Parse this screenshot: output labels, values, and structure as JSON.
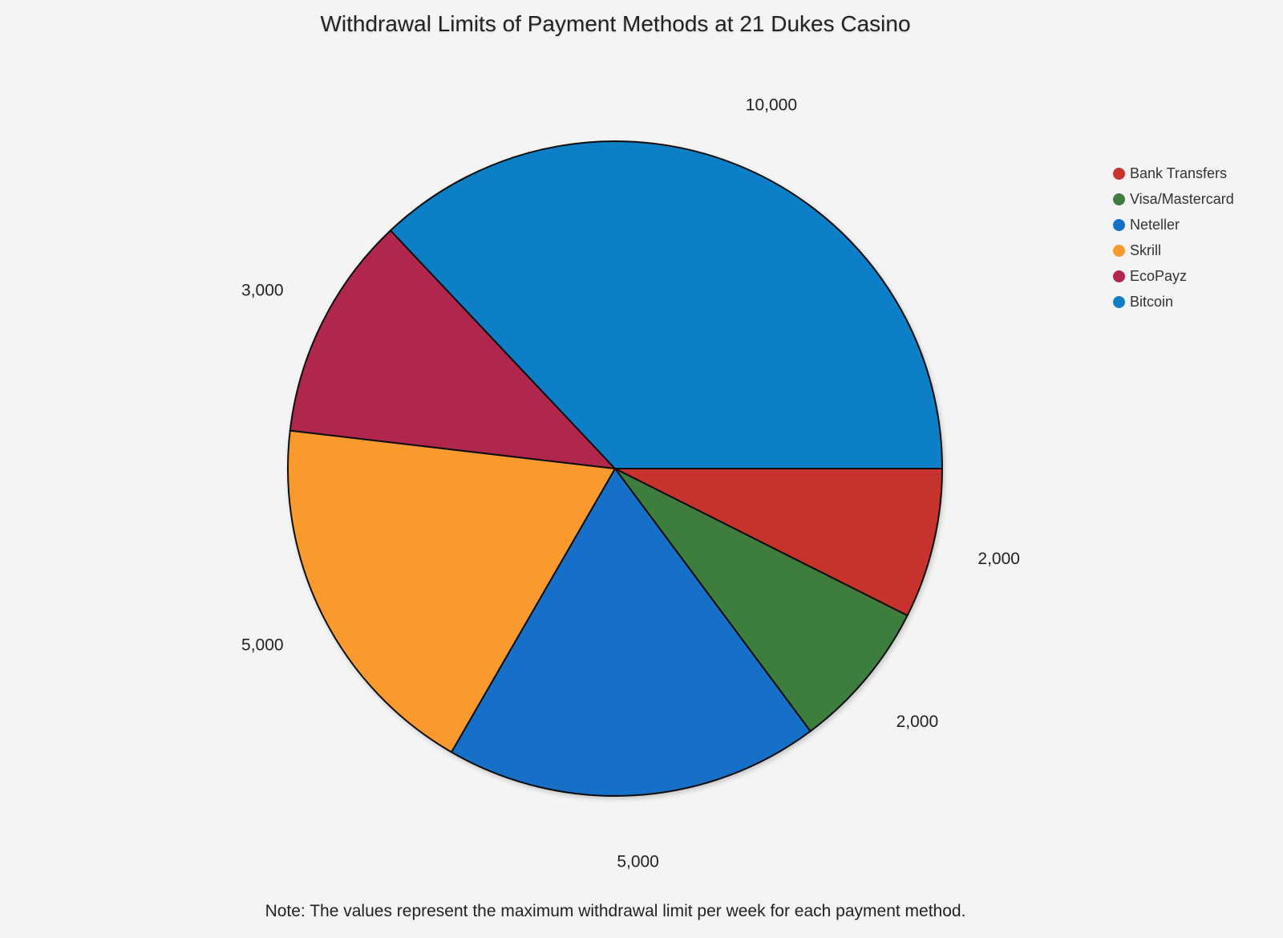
{
  "chart_data": {
    "type": "pie",
    "title": "Withdrawal Limits of Payment Methods at 21 Dukes Casino",
    "categories": [
      "Bank Transfers",
      "Visa/Mastercard",
      "Neteller",
      "Skrill",
      "EcoPayz",
      "Bitcoin"
    ],
    "values": [
      2000,
      2000,
      5000,
      5000,
      3000,
      10000
    ],
    "value_labels": [
      "2,000",
      "2,000",
      "5,000",
      "5,000",
      "3,000",
      "10,000"
    ],
    "colors": [
      "#c8332d",
      "#3e7d3d",
      "#136fc7",
      "#fa992d",
      "#b0264d",
      "#0f7fc6"
    ],
    "start_angle": "3 o'clock",
    "direction": "clockwise",
    "legend_position": "top-right",
    "note": "Note: The values represent the maximum withdrawal limit per week for each payment method."
  }
}
